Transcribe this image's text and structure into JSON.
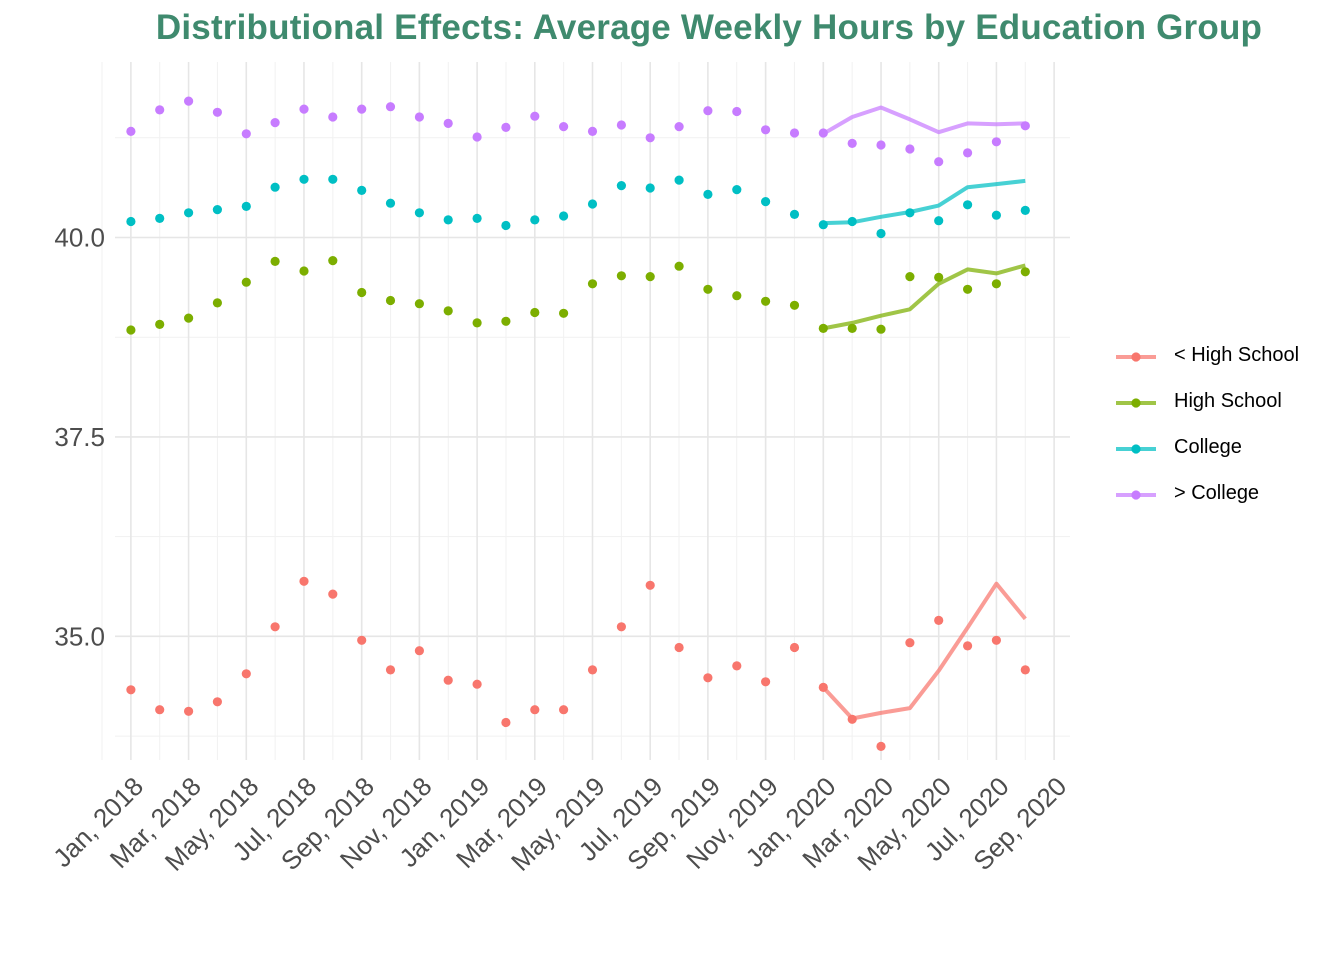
{
  "chart_data": {
    "type": "line",
    "title": "Distributional Effects: Average Weekly Hours by Education Group",
    "xlabel": "",
    "ylabel": "",
    "title_color": "#3f8a6e",
    "x_tick_labels": [
      "Jan, 2018",
      "Mar, 2018",
      "May, 2018",
      "Jul, 2018",
      "Sep, 2018",
      "Nov, 2018",
      "Jan, 2019",
      "Mar, 2019",
      "May, 2019",
      "Jul, 2019",
      "Sep, 2019",
      "Nov, 2019",
      "Jan, 2020",
      "Mar, 2020",
      "May, 2020",
      "Jul, 2020",
      "Sep, 2020"
    ],
    "y_tick_labels": [
      "35.0",
      "37.5",
      "40.0"
    ],
    "y_ticks": [
      35.0,
      37.5,
      40.0
    ],
    "ylim": [
      33.45,
      42.2
    ],
    "x_dates": [
      "2018-01",
      "2018-02",
      "2018-03",
      "2018-04",
      "2018-05",
      "2018-06",
      "2018-07",
      "2018-08",
      "2018-09",
      "2018-10",
      "2018-11",
      "2018-12",
      "2019-01",
      "2019-02",
      "2019-03",
      "2019-04",
      "2019-05",
      "2019-06",
      "2019-07",
      "2019-08",
      "2019-09",
      "2019-10",
      "2019-11",
      "2019-12",
      "2020-01",
      "2020-02",
      "2020-03",
      "2020-04",
      "2020-05",
      "2020-06",
      "2020-07",
      "2020-08"
    ],
    "xlim": [
      "2017-12",
      "2020-09"
    ],
    "grid": true,
    "legend_position": "right",
    "series": [
      {
        "name": "< High School",
        "color": "#f8766d",
        "points": [
          34.33,
          34.08,
          34.06,
          34.18,
          34.53,
          35.12,
          35.69,
          35.53,
          34.95,
          34.58,
          34.82,
          34.45,
          34.4,
          33.92,
          34.08,
          34.08,
          34.58,
          35.12,
          35.64,
          34.86,
          34.48,
          34.63,
          34.43,
          34.86,
          34.36,
          33.96,
          33.62,
          34.92,
          35.2,
          34.88,
          34.95,
          34.58
        ],
        "line_start_index": 24,
        "line": [
          34.36,
          33.97,
          34.04,
          34.1,
          34.57,
          35.11,
          35.66,
          35.22
        ]
      },
      {
        "name": "High School",
        "color": "#7cae00",
        "points": [
          38.84,
          38.91,
          38.99,
          39.18,
          39.44,
          39.7,
          39.58,
          39.71,
          39.31,
          39.21,
          39.17,
          39.08,
          38.93,
          38.95,
          39.06,
          39.05,
          39.42,
          39.52,
          39.51,
          39.64,
          39.35,
          39.27,
          39.2,
          39.15,
          38.86,
          38.86,
          38.85,
          39.51,
          39.5,
          39.35,
          39.42,
          39.57
        ],
        "line_start_index": 24,
        "line": [
          38.86,
          38.93,
          39.02,
          39.1,
          39.42,
          39.6,
          39.55,
          39.65
        ]
      },
      {
        "name": "College",
        "color": "#00bfc4",
        "points": [
          40.2,
          40.24,
          40.31,
          40.35,
          40.39,
          40.63,
          40.73,
          40.73,
          40.59,
          40.43,
          40.31,
          40.22,
          40.24,
          40.15,
          40.22,
          40.27,
          40.42,
          40.65,
          40.62,
          40.72,
          40.54,
          40.6,
          40.45,
          40.29,
          40.16,
          40.2,
          40.05,
          40.31,
          40.21,
          40.41,
          40.28,
          40.34
        ],
        "line_start_index": 24,
        "line": [
          40.18,
          40.19,
          40.26,
          40.32,
          40.4,
          40.63,
          40.67,
          40.71
        ]
      },
      {
        "name": "> College",
        "color": "#c77cff",
        "points": [
          41.33,
          41.6,
          41.71,
          41.57,
          41.3,
          41.44,
          41.61,
          41.51,
          41.61,
          41.64,
          41.51,
          41.43,
          41.26,
          41.38,
          41.52,
          41.39,
          41.33,
          41.41,
          41.25,
          41.39,
          41.59,
          41.58,
          41.35,
          41.31,
          41.31,
          41.18,
          41.16,
          41.11,
          40.95,
          41.06,
          41.2,
          41.4
        ],
        "line_start_index": 24,
        "line": [
          41.3,
          41.51,
          41.63,
          41.48,
          41.32,
          41.43,
          41.42,
          41.43
        ]
      }
    ]
  }
}
